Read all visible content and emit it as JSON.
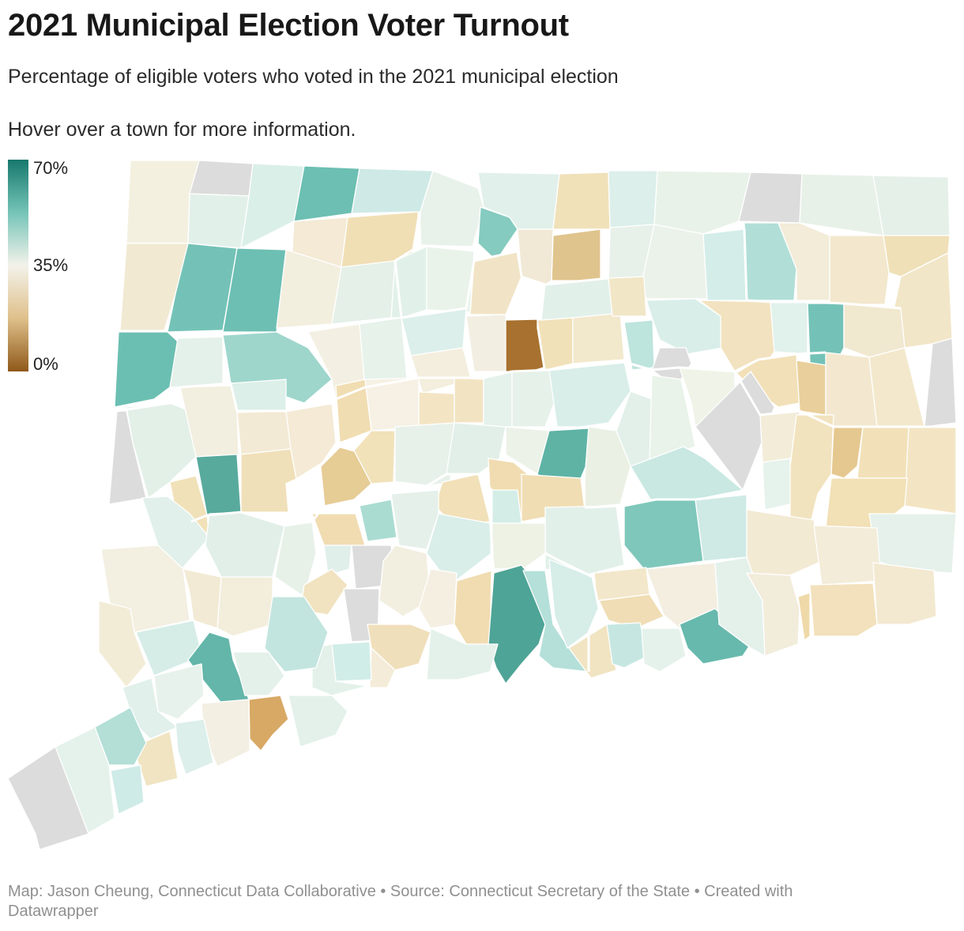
{
  "header": {
    "title": "2021 Municipal Election Voter Turnout",
    "subtitle": "Percentage of eligible voters who voted in the 2021 municipal election",
    "hint": "Hover over a town for more information."
  },
  "legend": {
    "max_label": "70%",
    "mid_label": "35%",
    "min_label": "0%",
    "colors": {
      "high": "#17786c",
      "midhigh": "#75c4b8",
      "mid": "#f3f2ea",
      "midlow": "#dfc08a",
      "low": "#8f5919"
    },
    "no_data_color": "#dcdcdc"
  },
  "footer": {
    "credit": "Map: Jason Cheung, Connecticut Data Collaborative • Source: Connecticut Secretary of the State • Created with Datawrapper"
  }
}
